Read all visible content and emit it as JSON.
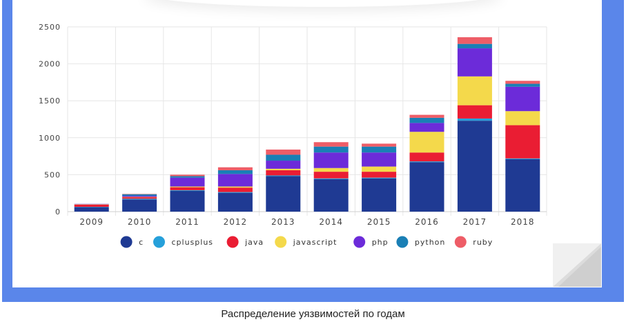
{
  "caption": "Распределение уязвимостей по годам",
  "chart_data": {
    "type": "bar",
    "stacked": true,
    "categories": [
      "2009",
      "2010",
      "2011",
      "2012",
      "2013",
      "2014",
      "2015",
      "2016",
      "2017",
      "2018"
    ],
    "ylim": [
      0,
      2500
    ],
    "yticks": [
      0,
      500,
      1000,
      1500,
      2000,
      2500
    ],
    "grid": true,
    "legend_position": "bottom",
    "series": [
      {
        "name": "c",
        "color": "#1f3a93",
        "values": [
          60,
          165,
          280,
          255,
          480,
          440,
          450,
          670,
          1230,
          710
        ]
      },
      {
        "name": "cplusplus",
        "color": "#26a0da",
        "values": [
          5,
          10,
          10,
          10,
          10,
          10,
          10,
          10,
          30,
          10
        ]
      },
      {
        "name": "java",
        "color": "#ea1d33",
        "values": [
          30,
          20,
          40,
          60,
          70,
          90,
          80,
          120,
          180,
          450
        ]
      },
      {
        "name": "javascript",
        "color": "#f4d94b",
        "values": [
          5,
          5,
          10,
          15,
          20,
          50,
          70,
          280,
          390,
          190
        ]
      },
      {
        "name": "php",
        "color": "#6c2bd9",
        "values": [
          5,
          15,
          120,
          170,
          110,
          210,
          190,
          120,
          380,
          330
        ]
      },
      {
        "name": "python",
        "color": "#1a7fb5",
        "values": [
          0,
          20,
          20,
          50,
          80,
          80,
          80,
          70,
          60,
          40
        ]
      },
      {
        "name": "ruby",
        "color": "#ee5d67",
        "values": [
          0,
          5,
          20,
          40,
          70,
          60,
          40,
          40,
          90,
          40
        ]
      }
    ]
  }
}
